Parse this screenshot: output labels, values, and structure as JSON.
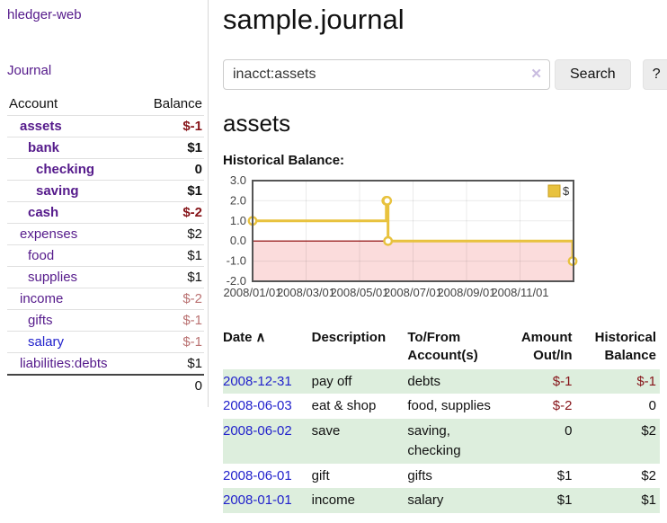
{
  "app": {
    "brand": "hledger-web",
    "nav": {
      "journal": "Journal"
    }
  },
  "sidebar": {
    "account_header": "Account",
    "balance_header": "Balance",
    "accounts": [
      {
        "name": "assets",
        "balance": "$-1",
        "level": 1,
        "bold": true,
        "balance_negative": true
      },
      {
        "name": "bank",
        "balance": "$1",
        "level": 2,
        "bold": true,
        "balance_negative": false
      },
      {
        "name": "checking",
        "balance": "0",
        "level": 3,
        "bold": true,
        "balance_negative": false
      },
      {
        "name": "saving",
        "balance": "$1",
        "level": 3,
        "bold": true,
        "balance_negative": false
      },
      {
        "name": "cash",
        "balance": "$-2",
        "level": 2,
        "bold": true,
        "balance_negative": true
      },
      {
        "name": "expenses",
        "balance": "$2",
        "level": 1,
        "bold": false,
        "balance_negative": false
      },
      {
        "name": "food",
        "balance": "$1",
        "level": 2,
        "bold": false,
        "balance_negative": false
      },
      {
        "name": "supplies",
        "balance": "$1",
        "level": 2,
        "bold": false,
        "balance_negative": false
      },
      {
        "name": "income",
        "balance": "$-2",
        "level": 1,
        "bold": false,
        "balance_negative": true
      },
      {
        "name": "gifts",
        "balance": "$-1",
        "level": 2,
        "bold": false,
        "balance_negative": true
      },
      {
        "name": "salary",
        "balance": "$-1",
        "level": 2,
        "bold": false,
        "balance_negative": true
      },
      {
        "name": "liabilities:debts",
        "balance": "$1",
        "level": 1,
        "bold": false,
        "balance_negative": false
      }
    ],
    "total": "0"
  },
  "main": {
    "title": "sample.journal",
    "search": {
      "value": "inacct:assets",
      "clear_icon": "✕",
      "button_label": "Search",
      "help_label": "?"
    },
    "account_heading": "assets",
    "chart_label": "Historical Balance:"
  },
  "chart_data": {
    "type": "line",
    "step": true,
    "title": "Historical Balance:",
    "legend": "$",
    "legend_position": "top-right",
    "series": [
      {
        "name": "$",
        "points": [
          [
            "2008-01-01",
            1
          ],
          [
            "2008-06-01",
            2
          ],
          [
            "2008-06-02",
            2
          ],
          [
            "2008-06-03",
            0
          ],
          [
            "2008-12-31",
            -1
          ]
        ]
      }
    ],
    "x_ticks": [
      "2008/01/01",
      "2008/03/01",
      "2008/05/01",
      "2008/07/01",
      "2008/09/01",
      "2008/11/01"
    ],
    "y_ticks": [
      "3.0",
      "2.0",
      "1.0",
      "0.0",
      "-1.0",
      "-2.0"
    ],
    "ylim": [
      -2,
      3
    ],
    "grid": true,
    "negative_region_fill": "#fbdcdc",
    "zero_line_color": "#8b0000",
    "line_color": "#e8c23e"
  },
  "register": {
    "headers": {
      "date": "Date",
      "sort_icon": "∧",
      "description": "Description",
      "accounts": "To/From Account(s)",
      "amount": "Amount Out/In",
      "balance": "Historical Balance"
    },
    "rows": [
      {
        "date": "2008-12-31",
        "description": "pay off",
        "accounts": "debts",
        "amount": "$-1",
        "amount_negative": true,
        "balance": "$-1",
        "balance_negative": true
      },
      {
        "date": "2008-06-03",
        "description": "eat & shop",
        "accounts": "food, supplies",
        "amount": "$-2",
        "amount_negative": true,
        "balance": "0",
        "balance_negative": false
      },
      {
        "date": "2008-06-02",
        "description": "save",
        "accounts": "saving, checking",
        "amount": "0",
        "amount_negative": false,
        "balance": "$2",
        "balance_negative": false
      },
      {
        "date": "2008-06-01",
        "description": "gift",
        "accounts": "gifts",
        "amount": "$1",
        "amount_negative": false,
        "balance": "$2",
        "balance_negative": false
      },
      {
        "date": "2008-01-01",
        "description": "income",
        "accounts": "salary",
        "amount": "$1",
        "amount_negative": false,
        "balance": "$1",
        "balance_negative": false
      }
    ]
  },
  "colors": {
    "link_purple": "#551a8b",
    "link_blue": "#2222cc",
    "negative_strong": "#861419",
    "negative_soft": "#ba7272",
    "row_stripe_green": "#ddeedd",
    "chart_gold": "#e8c23e",
    "chart_negative_pink": "#fbdcdc",
    "chart_zero_line": "#8b0000",
    "button_gray": "#ececec"
  }
}
